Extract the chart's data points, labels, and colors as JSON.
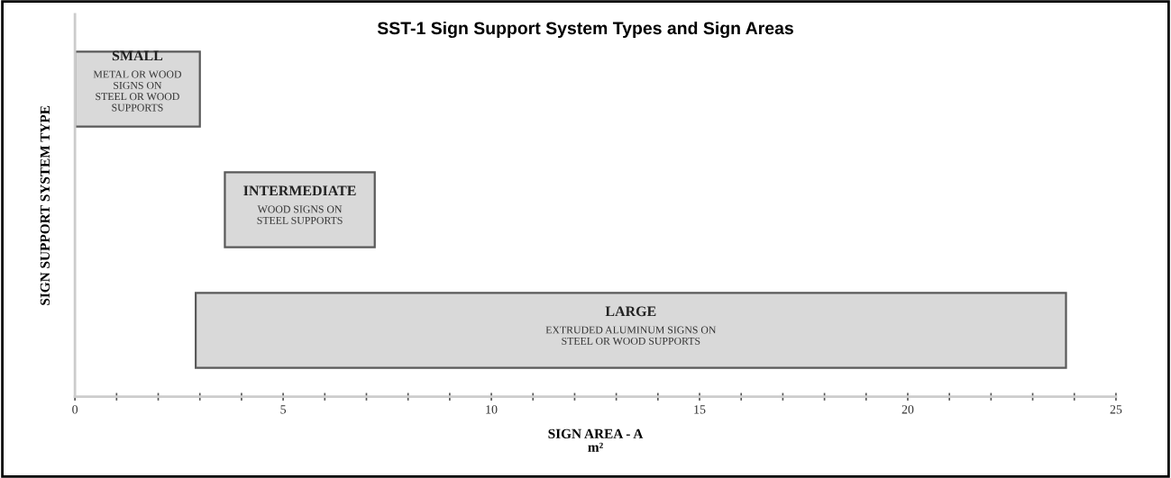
{
  "chart_data": {
    "type": "bar",
    "orientation": "horizontal",
    "title": "SST-1 Sign Support System Types and Sign Areas",
    "xlabel": "SIGN AREA - A\nm²",
    "ylabel": "SIGN SUPPORT SYSTEM TYPE",
    "categories": [
      "SMALL",
      "INTERMEDIATE",
      "LARGE"
    ],
    "base": [
      0,
      3.6,
      2.9
    ],
    "values": [
      3.0,
      3.6,
      20.9
    ],
    "color": "#d9d9d9",
    "xlim": [
      0,
      25
    ],
    "xticks": [
      0,
      {
        "value": 1,
        "label": null
      },
      {
        "value": 2,
        "label": null
      },
      {
        "value": 3,
        "label": null
      },
      {
        "value": 4,
        "label": null
      },
      5,
      {
        "value": 6,
        "label": null
      },
      {
        "value": 7,
        "label": null
      },
      {
        "value": 8,
        "label": null
      },
      {
        "value": 9,
        "label": null
      },
      10,
      {
        "value": 11,
        "label": null
      },
      {
        "value": 12,
        "label": null
      },
      {
        "value": 13,
        "label": null
      },
      {
        "value": 14,
        "label": null
      },
      15,
      {
        "value": 16,
        "label": null
      },
      {
        "value": 17,
        "label": null
      },
      {
        "value": 18,
        "label": null
      },
      {
        "value": 19,
        "label": null
      },
      20,
      {
        "value": 21,
        "label": null
      },
      {
        "value": 22,
        "label": null
      },
      {
        "value": 23,
        "label": null
      },
      {
        "value": 24,
        "label": null
      },
      25
    ],
    "annotations": [
      "METAL OR WOOD\nSIGNS ON\nSTEEL OR WOOD\nSUPPORTS",
      "WOOD SIGNS ON\nSTEEL SUPPORTS",
      "EXTRUDED ALUMINUM SIGNS ON\nSTEEL OR WOOD SUPPORTS"
    ],
    "grid": false,
    "legend": false,
    "tick_labels": "x"
  }
}
